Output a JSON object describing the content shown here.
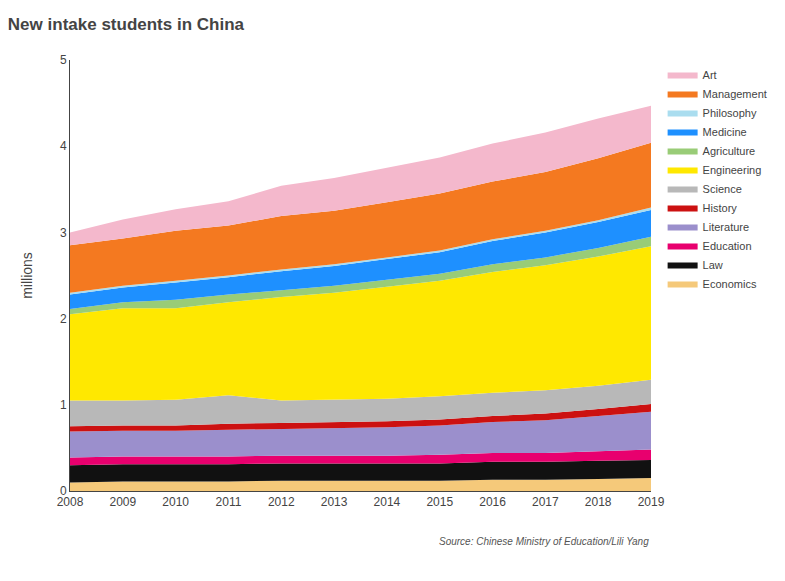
{
  "chart_data": {
    "type": "area",
    "stacked": true,
    "title": "New intake students in China",
    "ylabel": "millions",
    "annotations": [
      "Source: Chinese Ministry of Education/Lili Yang"
    ],
    "x": [
      2008,
      2009,
      2010,
      2011,
      2012,
      2013,
      2014,
      2015,
      2016,
      2017,
      2018,
      2019
    ],
    "series": [
      {
        "name": "Economics",
        "color": "#f5c97a",
        "values": [
          0.1,
          0.11,
          0.11,
          0.11,
          0.12,
          0.12,
          0.12,
          0.12,
          0.13,
          0.13,
          0.14,
          0.15
        ]
      },
      {
        "name": "Law",
        "color": "#111111",
        "values": [
          0.2,
          0.2,
          0.2,
          0.2,
          0.2,
          0.2,
          0.2,
          0.2,
          0.21,
          0.21,
          0.21,
          0.21
        ]
      },
      {
        "name": "Education",
        "color": "#e8006e",
        "values": [
          0.09,
          0.09,
          0.09,
          0.09,
          0.09,
          0.09,
          0.09,
          0.1,
          0.1,
          0.1,
          0.11,
          0.12
        ]
      },
      {
        "name": "Literature",
        "color": "#9b8fcc",
        "values": [
          0.3,
          0.3,
          0.3,
          0.31,
          0.31,
          0.32,
          0.33,
          0.34,
          0.36,
          0.38,
          0.41,
          0.44
        ]
      },
      {
        "name": "History",
        "color": "#cc1111",
        "values": [
          0.06,
          0.06,
          0.06,
          0.07,
          0.07,
          0.07,
          0.07,
          0.07,
          0.07,
          0.08,
          0.08,
          0.09
        ]
      },
      {
        "name": "Science",
        "color": "#b8b8b8",
        "values": [
          0.3,
          0.29,
          0.3,
          0.33,
          0.26,
          0.26,
          0.26,
          0.27,
          0.27,
          0.27,
          0.27,
          0.28
        ]
      },
      {
        "name": "Engineering",
        "color": "#ffe800",
        "values": [
          1.0,
          1.07,
          1.06,
          1.08,
          1.2,
          1.24,
          1.3,
          1.34,
          1.4,
          1.45,
          1.5,
          1.55
        ]
      },
      {
        "name": "Agriculture",
        "color": "#99cc77",
        "values": [
          0.06,
          0.07,
          0.1,
          0.09,
          0.08,
          0.08,
          0.08,
          0.08,
          0.09,
          0.09,
          0.1,
          0.11
        ]
      },
      {
        "name": "Medicine",
        "color": "#1e90ff",
        "values": [
          0.17,
          0.17,
          0.2,
          0.2,
          0.22,
          0.23,
          0.24,
          0.25,
          0.27,
          0.29,
          0.3,
          0.31
        ]
      },
      {
        "name": "Philosophy",
        "color": "#aaddef",
        "values": [
          0.02,
          0.02,
          0.02,
          0.02,
          0.02,
          0.02,
          0.02,
          0.02,
          0.02,
          0.02,
          0.02,
          0.03
        ]
      },
      {
        "name": "Management",
        "color": "#f47920",
        "values": [
          0.55,
          0.55,
          0.58,
          0.58,
          0.62,
          0.62,
          0.64,
          0.66,
          0.67,
          0.68,
          0.72,
          0.75
        ]
      },
      {
        "name": "Art",
        "color": "#f4b8cc",
        "values": [
          0.15,
          0.22,
          0.25,
          0.28,
          0.35,
          0.38,
          0.4,
          0.42,
          0.44,
          0.46,
          0.46,
          0.43
        ]
      }
    ],
    "xlim": [
      2008,
      2019
    ],
    "xticks": [
      2008,
      2009,
      2010,
      2011,
      2012,
      2013,
      2014,
      2015,
      2016,
      2017,
      2018,
      2019
    ],
    "ylim": [
      0,
      5
    ],
    "yticks": [
      0,
      1,
      2,
      3,
      4,
      5
    ],
    "grid": false,
    "legend": "right"
  }
}
